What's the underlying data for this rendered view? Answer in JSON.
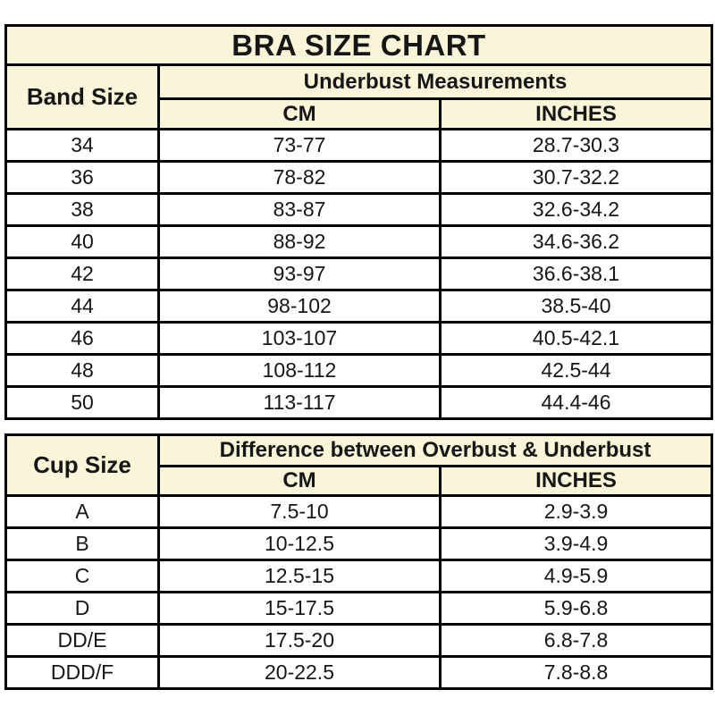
{
  "colors": {
    "header_background": "#faf4d8",
    "row_background": "#ffffff",
    "border": "#000000",
    "text": "#161616"
  },
  "chart_data": [
    {
      "type": "table",
      "title": "BRA SIZE CHART",
      "corner_header": "Band Size",
      "group_header": "Underbust Measurements",
      "sub_headers": [
        "CM",
        "INCHES"
      ],
      "rows": [
        [
          "34",
          "73-77",
          "28.7-30.3"
        ],
        [
          "36",
          "78-82",
          "30.7-32.2"
        ],
        [
          "38",
          "83-87",
          "32.6-34.2"
        ],
        [
          "40",
          "88-92",
          "34.6-36.2"
        ],
        [
          "42",
          "93-97",
          "36.6-38.1"
        ],
        [
          "44",
          "98-102",
          "38.5-40"
        ],
        [
          "46",
          "103-107",
          "40.5-42.1"
        ],
        [
          "48",
          "108-112",
          "42.5-44"
        ],
        [
          "50",
          "113-117",
          "44.4-46"
        ]
      ]
    },
    {
      "type": "table",
      "corner_header": "Cup Size",
      "group_header": "Difference between Overbust & Underbust",
      "sub_headers": [
        "CM",
        "INCHES"
      ],
      "rows": [
        [
          "A",
          "7.5-10",
          "2.9-3.9"
        ],
        [
          "B",
          "10-12.5",
          "3.9-4.9"
        ],
        [
          "C",
          "12.5-15",
          "4.9-5.9"
        ],
        [
          "D",
          "15-17.5",
          "5.9-6.8"
        ],
        [
          "DD/E",
          "17.5-20",
          "6.8-7.8"
        ],
        [
          "DDD/F",
          "20-22.5",
          "7.8-8.8"
        ]
      ]
    }
  ]
}
